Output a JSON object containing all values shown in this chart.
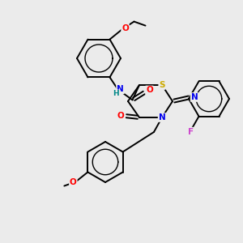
{
  "background_color": "#ebebeb",
  "bond_color": "#000000",
  "atom_colors": {
    "N": "#0000ee",
    "O": "#ff0000",
    "S": "#ccaa00",
    "F": "#cc44cc",
    "NH": "#008888",
    "C": "#000000"
  },
  "figsize": [
    3.0,
    3.0
  ],
  "dpi": 100
}
